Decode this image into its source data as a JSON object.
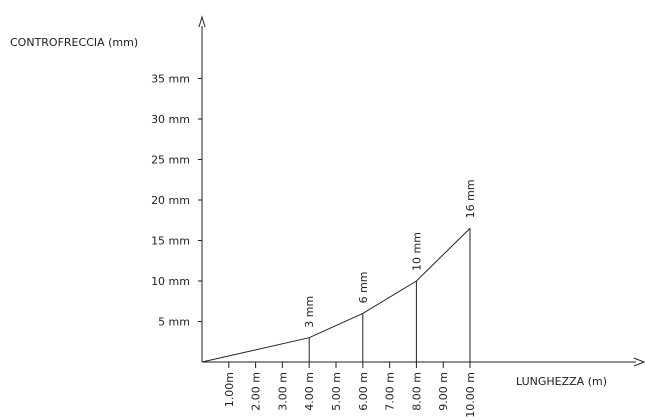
{
  "chart_data": {
    "type": "line",
    "title": "",
    "ylabel": "CONTROFRECCIA (mm)",
    "xlabel": "LUNGHEZZA (m)",
    "xlim": [
      0,
      10
    ],
    "ylim": [
      0,
      35
    ],
    "yticks": [
      {
        "value": 5,
        "label": "5  mm"
      },
      {
        "value": 10,
        "label": "10  mm"
      },
      {
        "value": 15,
        "label": "15  mm"
      },
      {
        "value": 20,
        "label": "20  mm"
      },
      {
        "value": 25,
        "label": "25  mm"
      },
      {
        "value": 30,
        "label": "30  mm"
      },
      {
        "value": 35,
        "label": "35  mm"
      }
    ],
    "xticks": [
      {
        "value": 1,
        "label": "1.00m"
      },
      {
        "value": 2,
        "label": "2.00 m"
      },
      {
        "value": 3,
        "label": "3.00 m"
      },
      {
        "value": 4,
        "label": "4.00 m"
      },
      {
        "value": 5,
        "label": "5.00 m"
      },
      {
        "value": 6,
        "label": "6.00 m"
      },
      {
        "value": 7,
        "label": "7.00 m"
      },
      {
        "value": 8,
        "label": "8.00 m"
      },
      {
        "value": 9,
        "label": "9.00 m"
      },
      {
        "value": 10,
        "label": "10.00 m"
      }
    ],
    "series": [
      {
        "points": [
          {
            "x": 0,
            "y": 0
          },
          {
            "x": 4,
            "y": 3,
            "label": "3 mm"
          },
          {
            "x": 6,
            "y": 6,
            "label": "6 mm"
          },
          {
            "x": 8,
            "y": 10,
            "label": "10 mm"
          },
          {
            "x": 10,
            "y": 16.5,
            "label": "16 mm"
          }
        ]
      }
    ],
    "grid": false,
    "axis_arrows": true
  }
}
